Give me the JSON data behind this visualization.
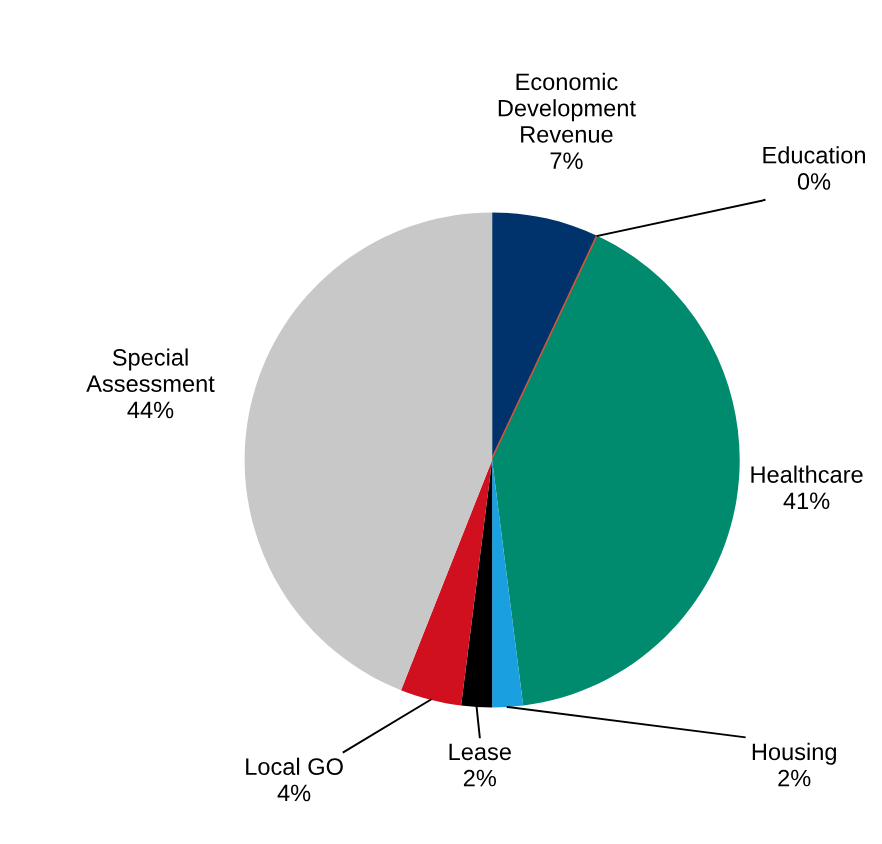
{
  "chart_data": {
    "type": "pie",
    "categories": [
      "Economic\nDevelopment\nRevenue",
      "Education",
      "Healthcare",
      "Housing",
      "Lease",
      "Local GO",
      "Special\nAssessment"
    ],
    "values": [
      7,
      0,
      41,
      2,
      2,
      4,
      44
    ],
    "value_labels": [
      "7%",
      "0%",
      "41%",
      "2%",
      "2%",
      "4%",
      "44%"
    ],
    "colors": [
      "#00336b",
      "#d2553a",
      "#008a6e",
      "#1a9fe0",
      "#000000",
      "#d0101e",
      "#c8c8c8"
    ],
    "legend": false
  }
}
